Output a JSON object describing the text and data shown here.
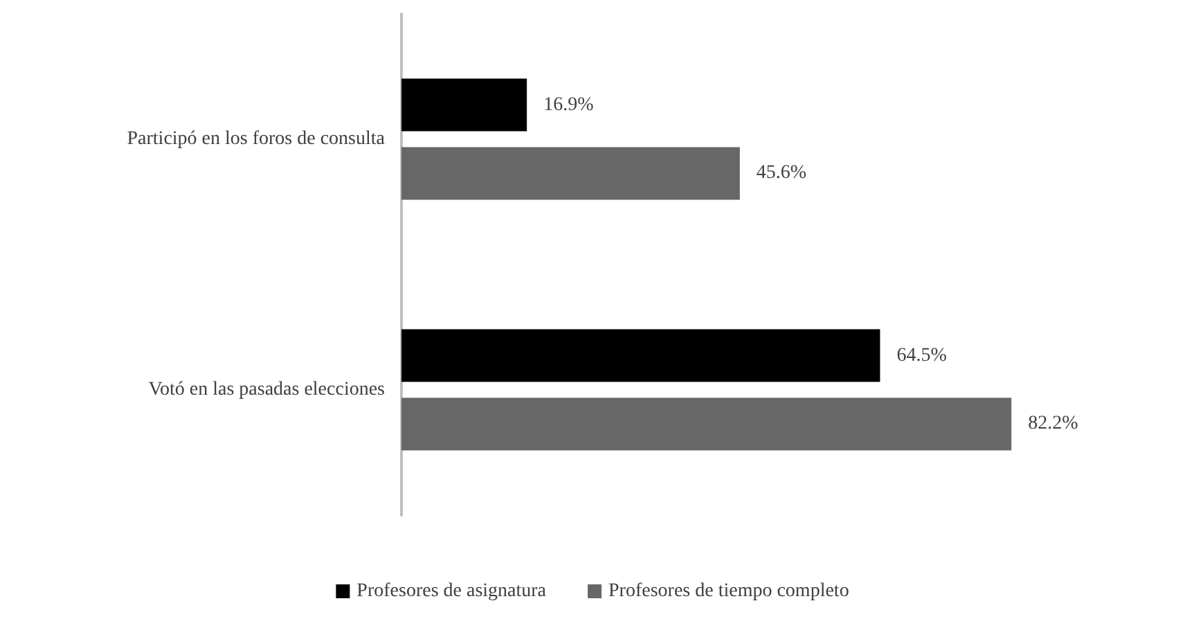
{
  "chart_data": {
    "type": "bar",
    "orientation": "horizontal",
    "categories": [
      "Participó en los foros de consulta",
      "Votó en las pasadas elecciones"
    ],
    "series": [
      {
        "name": "Profesores de asignatura",
        "color": "#000000",
        "values": [
          16.9,
          64.5
        ],
        "value_labels": [
          "16.9%",
          "64.5%"
        ]
      },
      {
        "name": "Profesores de tiempo completo",
        "color": "#676767",
        "values": [
          45.6,
          82.2
        ],
        "value_labels": [
          "45.6%",
          "82.2%"
        ]
      }
    ],
    "legend": "bottom"
  }
}
